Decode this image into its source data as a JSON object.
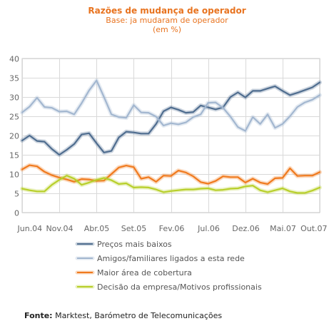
{
  "title": "Razões de mudança de operador",
  "subtitle": "Base: ja mudaram de operador",
  "unit": "(em %)",
  "source_label": "Fonte:",
  "source_text": " Marktest, Barómetro de Telecomunicações",
  "chart_data": {
    "type": "line",
    "x_tick_labels": [
      "Jun.04",
      "Nov.04",
      "Abr.05",
      "Set.05",
      "Fev.06",
      "Jul.06",
      "Dez.06",
      "Mai.07",
      "Out.07"
    ],
    "x_tick_index": [
      0,
      5,
      10,
      15,
      20,
      25,
      30,
      35,
      40
    ],
    "x": [
      "Jun.04",
      "Jul.04",
      "Ago.04",
      "Set.04",
      "Out.04",
      "Nov.04",
      "Dez.04",
      "Jan.05",
      "Fev.05",
      "Mar.05",
      "Abr.05",
      "Mai.05",
      "Jun.05",
      "Jul.05",
      "Ago.05",
      "Set.05",
      "Out.05",
      "Nov.05",
      "Dez.05",
      "Jan.06",
      "Fev.06",
      "Mar.06",
      "Abr.06",
      "Mai.06",
      "Jun.06",
      "Jul.06",
      "Ago.06",
      "Set.06",
      "Out.06",
      "Nov.06",
      "Dez.06",
      "Jan.07",
      "Fev.07",
      "Mar.07",
      "Abr.07",
      "Mai.07",
      "Jun.07",
      "Jul.07",
      "Ago.07",
      "Set.07",
      "Out.07"
    ],
    "ylim": [
      0,
      40
    ],
    "yticks": [
      0,
      5,
      10,
      15,
      20,
      25,
      30,
      35,
      40
    ],
    "grid": true,
    "legend_position": "bottom",
    "series": [
      {
        "name": "Preços mais baixos",
        "color": "#4f6d8f",
        "values": [
          18.7,
          20,
          18.6,
          18.4,
          16.5,
          15,
          16.3,
          17.8,
          20.3,
          20.6,
          18,
          15.6,
          16,
          19.5,
          21,
          20.8,
          20.5,
          20.5,
          23,
          26.3,
          27.3,
          26.7,
          25.9,
          26.1,
          27.8,
          27.3,
          26.8,
          27.3,
          30,
          31.2,
          29.9,
          31.6,
          31.6,
          32.2,
          32.8,
          31.6,
          30.5,
          31.1,
          31.8,
          32.5,
          33.8
        ]
      },
      {
        "name": "Amigos/familiares ligados a esta rede",
        "color": "#a3b7d0",
        "values": [
          26,
          27.5,
          29.8,
          27.4,
          27.2,
          26.2,
          26.3,
          25.5,
          28.4,
          31.7,
          34.3,
          30,
          25.5,
          24.8,
          24.6,
          27.9,
          26,
          25.9,
          24.9,
          22.6,
          23.2,
          22.9,
          23.4,
          24.8,
          25.5,
          28.5,
          28.6,
          27.2,
          24.9,
          22.2,
          21.2,
          24.8,
          23,
          25.5,
          22,
          23,
          25,
          27.4,
          28.6,
          29.3,
          30.5
        ]
      },
      {
        "name": "Maior área de cobertura",
        "color": "#f07a1e",
        "values": [
          11.2,
          12.3,
          12,
          10.6,
          9.7,
          9.1,
          8.6,
          8,
          8.7,
          8.6,
          8.2,
          8.3,
          10,
          11.7,
          12.2,
          11.8,
          8.8,
          9.2,
          8,
          9.6,
          9.5,
          10.9,
          10.4,
          9.4,
          7.9,
          7.5,
          8.2,
          9.4,
          9.2,
          9.2,
          7.8,
          8.8,
          7.8,
          7.4,
          8.9,
          9,
          11.5,
          9.5,
          9.6,
          9.6,
          10.5
        ]
      },
      {
        "name": "Decisão da empresa/Motivos profissionais",
        "color": "#b8cf2a",
        "values": [
          6.2,
          5.8,
          5.5,
          5.5,
          7.2,
          8.5,
          9.6,
          8.8,
          7.2,
          7.8,
          8.5,
          9,
          8.4,
          7.4,
          7.6,
          6.5,
          6.6,
          6.5,
          6,
          5.3,
          5.6,
          5.8,
          6,
          6,
          6.2,
          6.3,
          5.8,
          5.9,
          6.2,
          6.3,
          6.8,
          7,
          5.8,
          5.3,
          5.8,
          6.3,
          5.5,
          5.1,
          5.1,
          5.7,
          6.5
        ]
      }
    ]
  }
}
